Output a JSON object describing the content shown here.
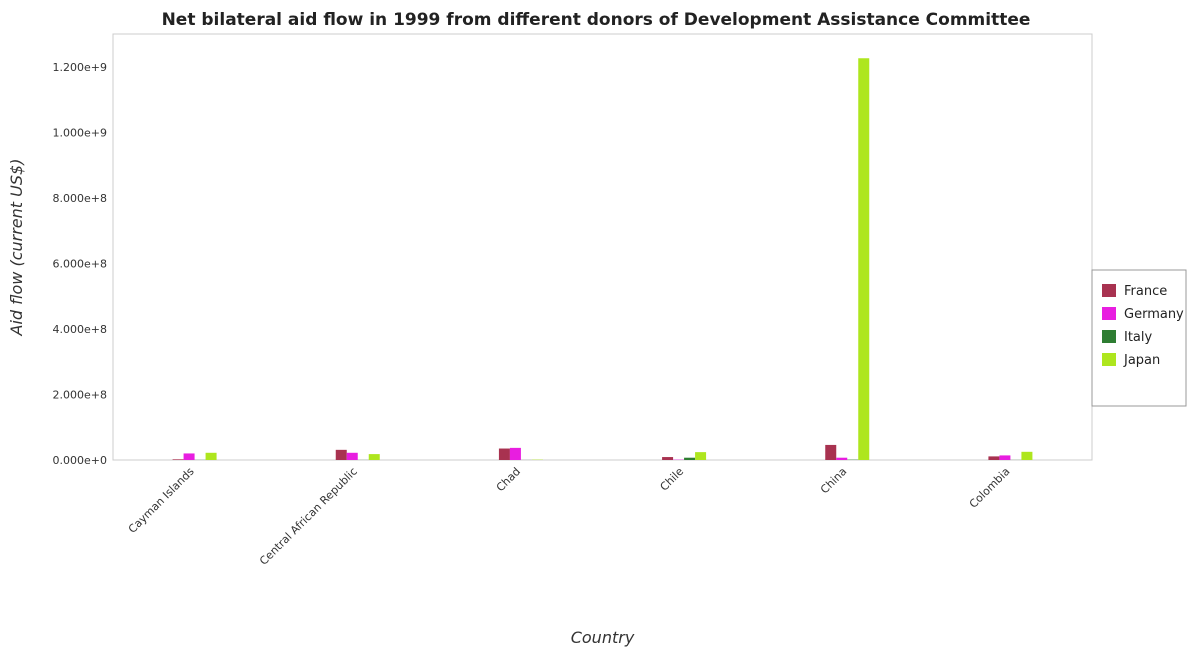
{
  "chart_data": {
    "type": "bar",
    "title": "Net bilateral aid flow in 1999 from different donors of Development Assistance Committee",
    "xlabel": "Country",
    "ylabel": "Aid flow (current US$)",
    "categories": [
      "Cayman Islands",
      "Central African Republic",
      "Chad",
      "Chile",
      "China",
      "Colombia"
    ],
    "series": [
      {
        "name": "France",
        "color": "#a83250",
        "values": [
          2000000,
          31000000,
          35000000,
          9000000,
          46000000,
          11000000
        ]
      },
      {
        "name": "Germany",
        "color": "#e81ee0",
        "values": [
          20000000,
          22000000,
          37000000,
          1000000,
          7000000,
          14000000
        ]
      },
      {
        "name": "Italy",
        "color": "#2e7d32",
        "values": [
          400000,
          300000,
          200000,
          7000000,
          1000000,
          300000
        ]
      },
      {
        "name": "Japan",
        "color": "#aee61e",
        "values": [
          22000000,
          18000000,
          1000000,
          24000000,
          1226000000,
          25000000
        ]
      }
    ],
    "ylim": [
      0,
      1300000000
    ],
    "yticks": [
      0,
      200000000,
      400000000,
      600000000,
      800000000,
      1000000000,
      1200000000
    ],
    "ytick_labels": [
      "0.000e+0",
      "2.000e+8",
      "4.000e+8",
      "6.000e+8",
      "8.000e+8",
      "1.000e+9",
      "1.200e+9"
    ],
    "grid": true,
    "legend_position": "right"
  }
}
